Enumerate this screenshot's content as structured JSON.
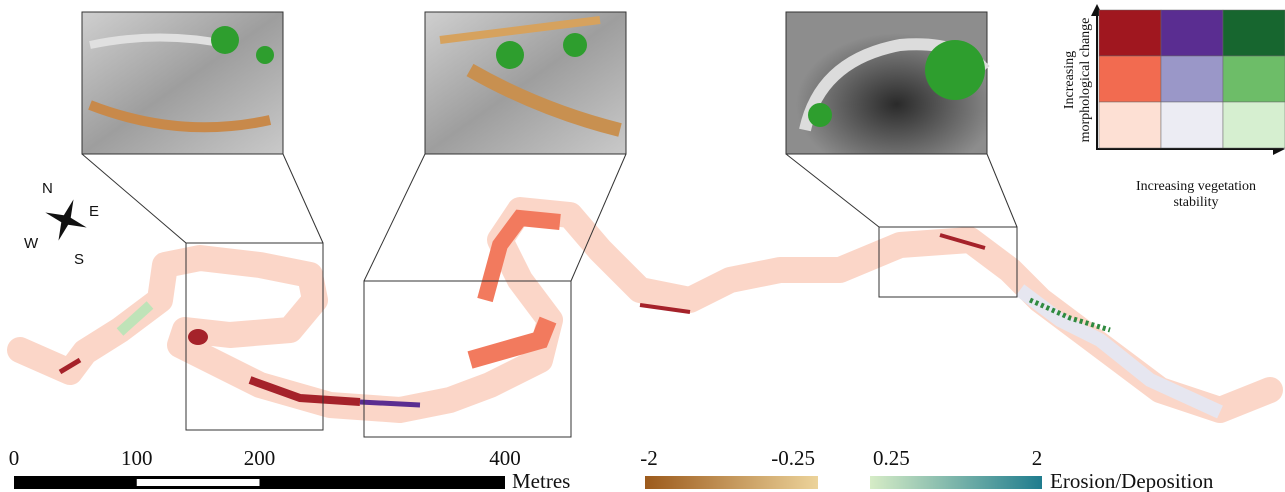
{
  "compass": {
    "north": "N",
    "east": "E",
    "south": "S",
    "west": "W"
  },
  "scale_bar": {
    "ticks": [
      0,
      100,
      200,
      400
    ],
    "unit": "Metres"
  },
  "colorbar": {
    "ticks": [
      -2,
      -0.25,
      0.25,
      2
    ],
    "title": "Erosion/Deposition"
  },
  "bivariate_legend": {
    "y_label": [
      "Increasing",
      "morphological change"
    ],
    "x_label": [
      "Increasing vegetation",
      "stability"
    ]
  }
}
